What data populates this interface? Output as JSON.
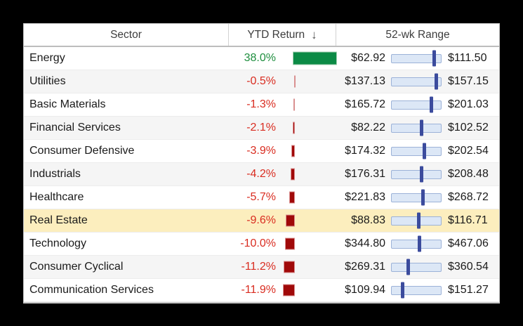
{
  "chart_data": {
    "type": "table",
    "columns": {
      "sector": "Sector",
      "ytd": "YTD Return",
      "range": "52-wk Range"
    },
    "sort": {
      "column": "ytd",
      "direction": "descending",
      "icon": "↓"
    },
    "rows": [
      {
        "sector": "Energy",
        "ytd_label": "38.0%",
        "ytd_value": 38.0,
        "low": "$62.92",
        "high": "$111.50",
        "range_pos": 0.87,
        "highlighted": false
      },
      {
        "sector": "Utilities",
        "ytd_label": "-0.5%",
        "ytd_value": -0.5,
        "low": "$137.13",
        "high": "$157.15",
        "range_pos": 0.9,
        "highlighted": false
      },
      {
        "sector": "Basic Materials",
        "ytd_label": "-1.3%",
        "ytd_value": -1.3,
        "low": "$165.72",
        "high": "$201.03",
        "range_pos": 0.8,
        "highlighted": false
      },
      {
        "sector": "Financial Services",
        "ytd_label": "-2.1%",
        "ytd_value": -2.1,
        "low": "$82.22",
        "high": "$102.52",
        "range_pos": 0.6,
        "highlighted": false
      },
      {
        "sector": "Consumer Defensive",
        "ytd_label": "-3.9%",
        "ytd_value": -3.9,
        "low": "$174.32",
        "high": "$202.54",
        "range_pos": 0.66,
        "highlighted": false
      },
      {
        "sector": "Industrials",
        "ytd_label": "-4.2%",
        "ytd_value": -4.2,
        "low": "$176.31",
        "high": "$208.48",
        "range_pos": 0.6,
        "highlighted": false
      },
      {
        "sector": "Healthcare",
        "ytd_label": "-5.7%",
        "ytd_value": -5.7,
        "low": "$221.83",
        "high": "$268.72",
        "range_pos": 0.64,
        "highlighted": false
      },
      {
        "sector": "Real Estate",
        "ytd_label": "-9.6%",
        "ytd_value": -9.6,
        "low": "$88.83",
        "high": "$116.71",
        "range_pos": 0.55,
        "highlighted": true
      },
      {
        "sector": "Technology",
        "ytd_label": "-10.0%",
        "ytd_value": -10.0,
        "low": "$344.80",
        "high": "$467.06",
        "range_pos": 0.57,
        "highlighted": false
      },
      {
        "sector": "Consumer Cyclical",
        "ytd_label": "-11.2%",
        "ytd_value": -11.2,
        "low": "$269.31",
        "high": "$360.54",
        "range_pos": 0.34,
        "highlighted": false
      },
      {
        "sector": "Communication Services",
        "ytd_label": "-11.9%",
        "ytd_value": -11.9,
        "low": "$109.94",
        "high": "$151.27",
        "range_pos": 0.22,
        "highlighted": false
      }
    ]
  },
  "colors": {
    "positive_text": "#1e8e3e",
    "positive_bar": "#0b8a45",
    "positive_bar_border": "#a4cfb2",
    "negative_text": "#d92c20",
    "negative_bar": "#a00909",
    "negative_bar_border": "#d99090",
    "highlight_row": "#fceebe",
    "alt_row": "#f5f5f5",
    "range_track": "#dce7f6",
    "range_track_border": "#9cb2d8",
    "range_marker": "#3b4b9d"
  }
}
